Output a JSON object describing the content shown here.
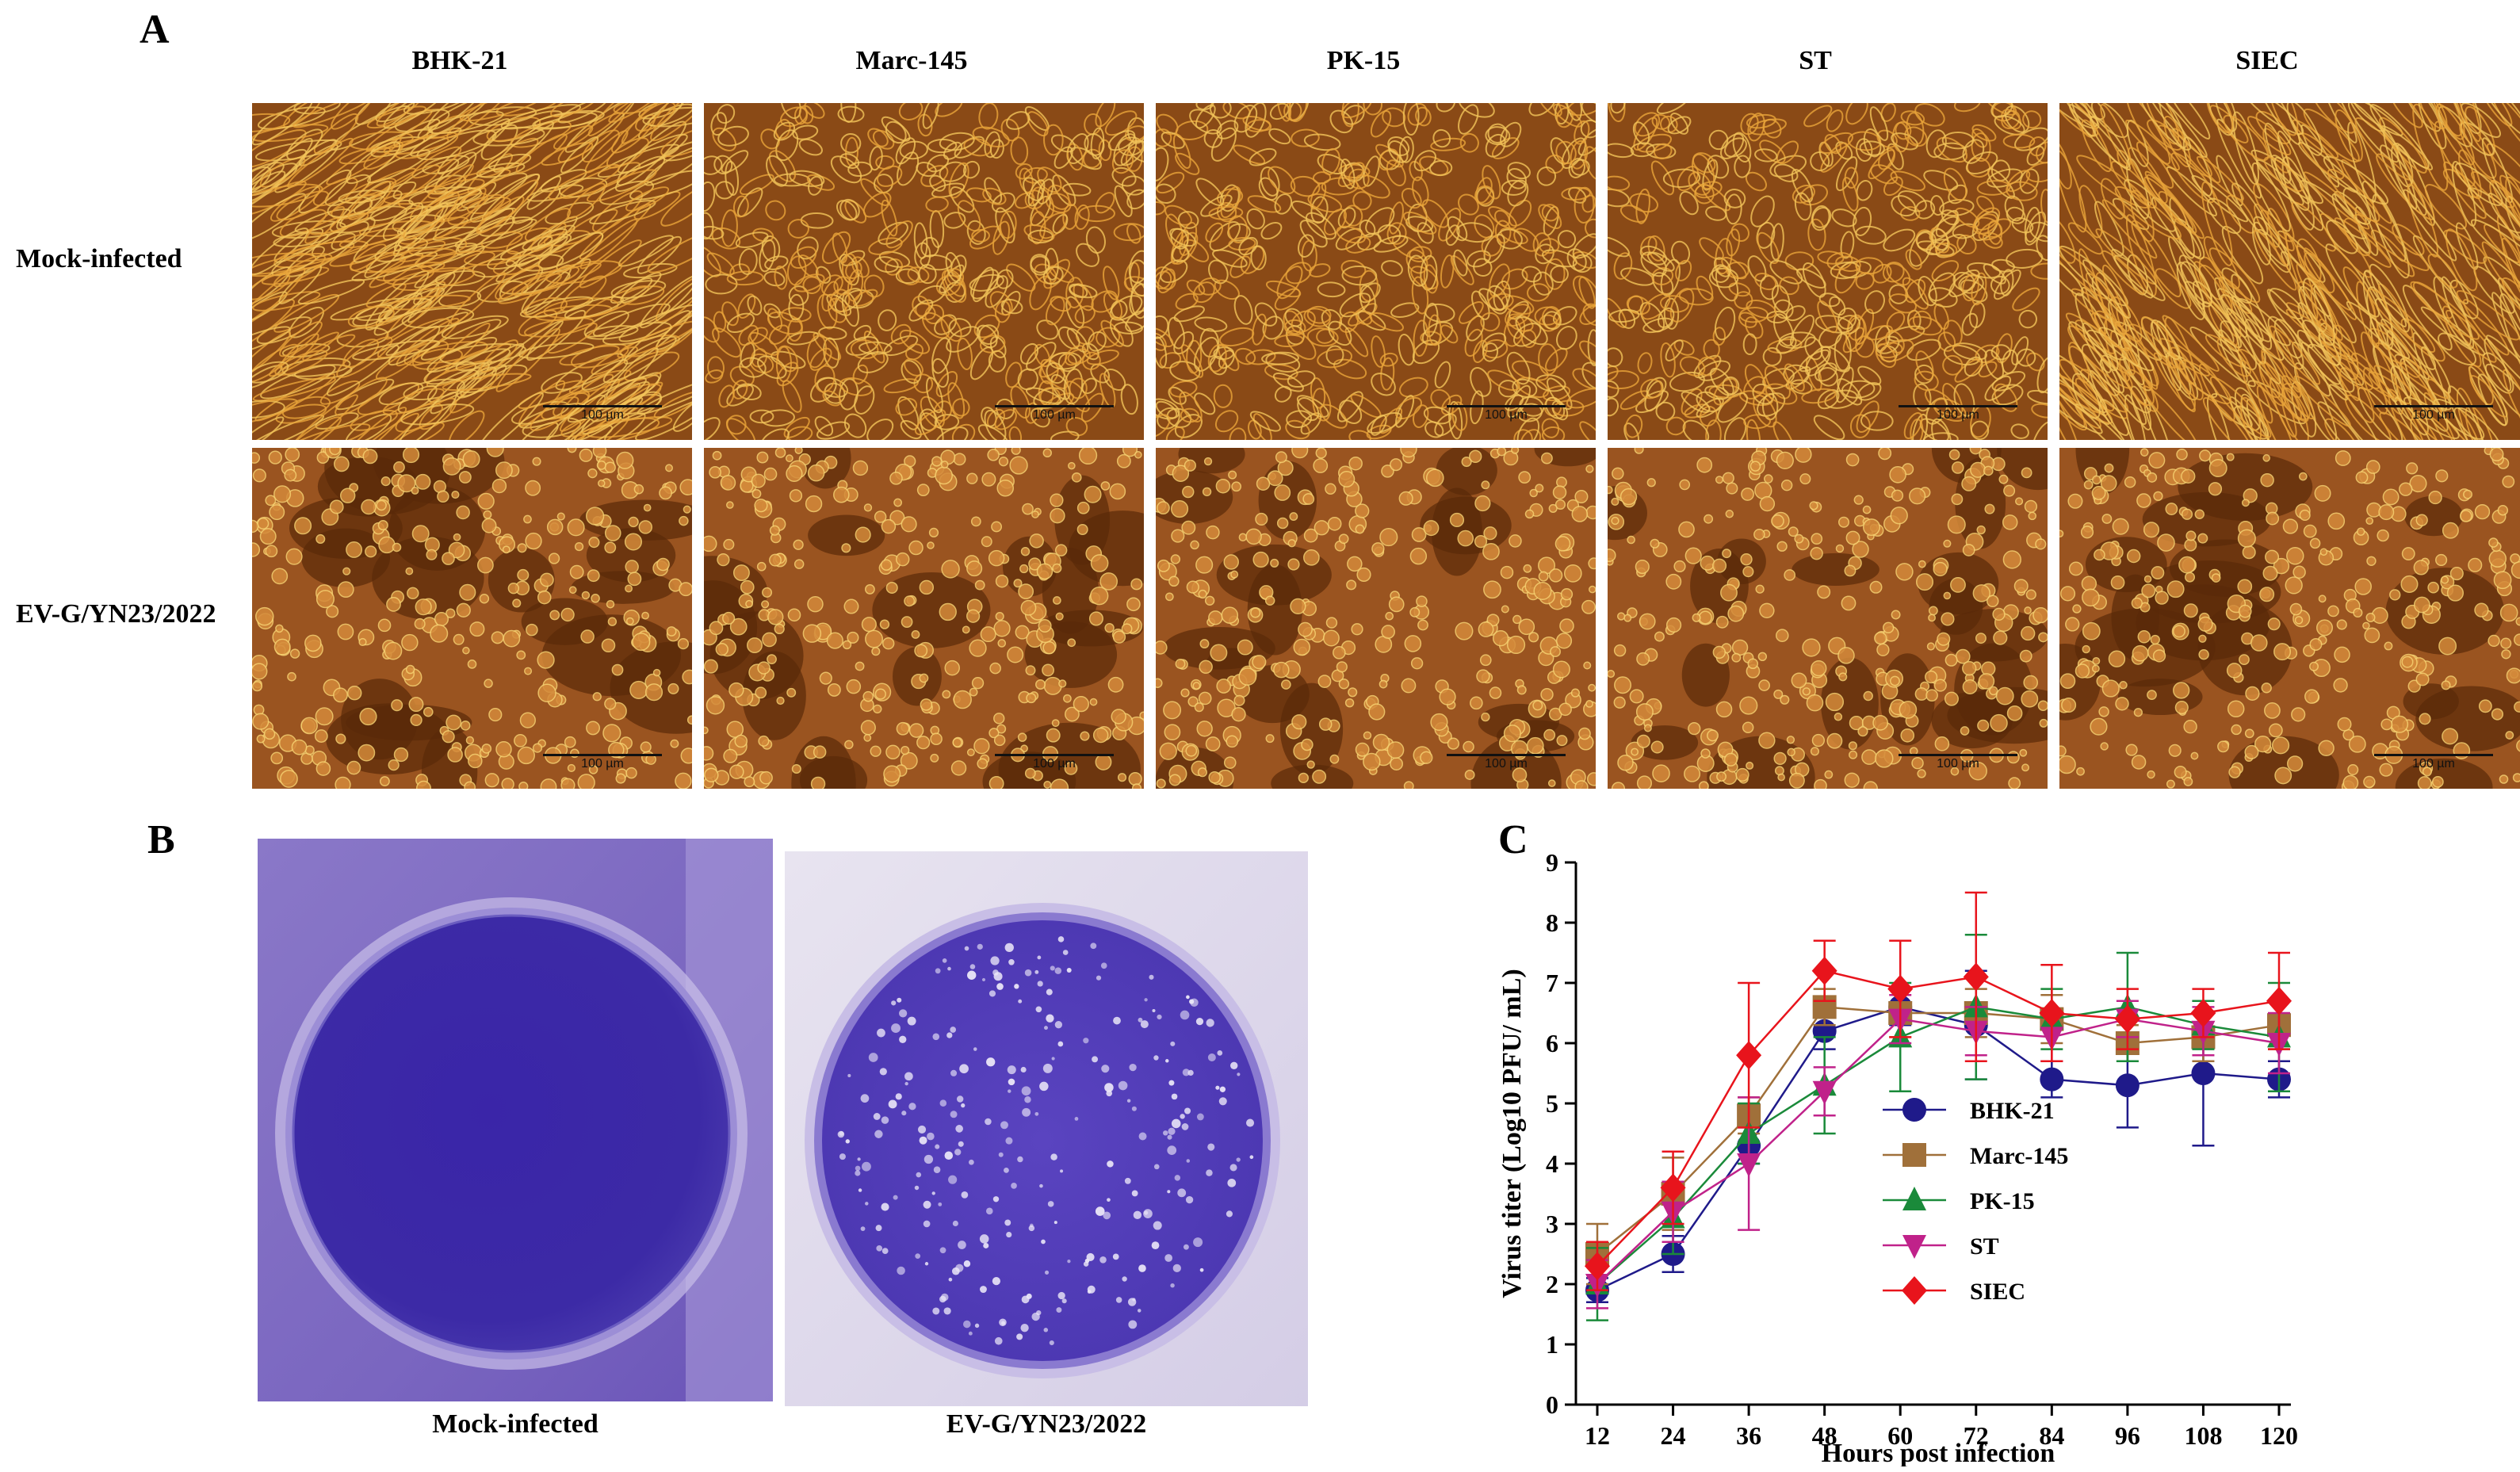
{
  "panel_a": {
    "letter": "A",
    "columns": [
      "BHK-21",
      "Marc-145",
      "PK-15",
      "ST",
      "SIEC"
    ],
    "rows": [
      "Mock-infected",
      "EV-G/YN23/2022"
    ],
    "scale_bar_label": "100 µm"
  },
  "panel_b": {
    "letter": "B",
    "dishes": [
      "Mock-infected",
      "EV-G/YN23/2022"
    ]
  },
  "panel_c": {
    "letter": "C"
  },
  "chart_data": {
    "type": "line",
    "title": "",
    "xlabel": "Hours post infection",
    "ylabel": "Virus titer (Log10 PFU/ mL)",
    "x": [
      12,
      24,
      36,
      48,
      60,
      72,
      84,
      96,
      108,
      120
    ],
    "ylim": [
      0,
      9
    ],
    "yticks": [
      0,
      1,
      2,
      3,
      4,
      5,
      6,
      7,
      8,
      9
    ],
    "legend_position": "center-right",
    "series": [
      {
        "name": "BHK-21",
        "marker": "circle",
        "color": "#1f1a8a",
        "values": [
          1.9,
          2.5,
          4.3,
          6.2,
          6.6,
          6.3,
          5.4,
          5.3,
          5.5,
          5.4
        ],
        "errors": [
          0.2,
          0.3,
          0.3,
          0.3,
          0.3,
          0.9,
          0.3,
          0.7,
          1.2,
          0.3
        ]
      },
      {
        "name": "Marc-145",
        "marker": "square",
        "color": "#a0703a",
        "values": [
          2.5,
          3.5,
          4.8,
          6.6,
          6.5,
          6.5,
          6.4,
          6.0,
          6.1,
          6.3
        ],
        "errors": [
          0.5,
          0.6,
          0.3,
          0.3,
          0.4,
          0.4,
          0.4,
          0.3,
          0.4,
          0.4
        ]
      },
      {
        "name": "PK-15",
        "marker": "triangle-up",
        "color": "#1a8a3a",
        "values": [
          2.0,
          3.1,
          4.5,
          5.3,
          6.1,
          6.6,
          6.4,
          6.6,
          6.3,
          6.1
        ],
        "errors": [
          0.6,
          0.6,
          0.5,
          0.8,
          0.9,
          1.2,
          0.5,
          0.9,
          0.4,
          0.9
        ]
      },
      {
        "name": "ST",
        "marker": "triangle-down",
        "color": "#c0228a",
        "values": [
          2.0,
          3.2,
          4.0,
          5.2,
          6.4,
          6.2,
          6.1,
          6.4,
          6.2,
          6.0
        ],
        "errors": [
          0.4,
          0.5,
          1.1,
          0.4,
          0.4,
          0.4,
          0.4,
          0.3,
          0.4,
          0.5
        ]
      },
      {
        "name": "SIEC",
        "marker": "diamond",
        "color": "#e8141c",
        "values": [
          2.3,
          3.6,
          5.8,
          7.2,
          6.9,
          7.1,
          6.5,
          6.4,
          6.5,
          6.7
        ],
        "errors": [
          0.4,
          0.6,
          1.2,
          0.5,
          0.8,
          1.4,
          0.8,
          0.5,
          0.4,
          0.8
        ]
      }
    ]
  }
}
